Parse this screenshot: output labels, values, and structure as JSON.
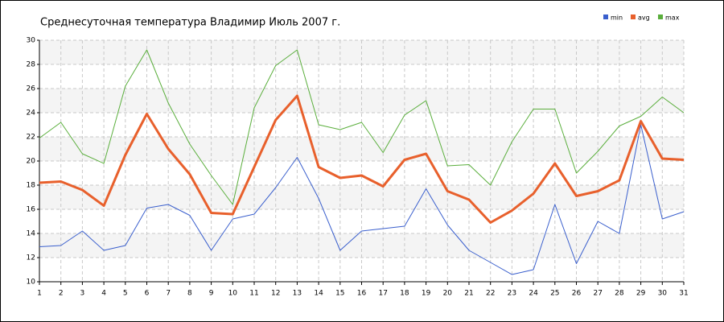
{
  "chart_data": {
    "type": "line",
    "title": "Среднесуточная температура Владимир  Июль 2007 г.",
    "x": [
      1,
      2,
      3,
      4,
      5,
      6,
      7,
      8,
      9,
      10,
      11,
      12,
      13,
      14,
      15,
      16,
      17,
      18,
      19,
      20,
      21,
      22,
      23,
      24,
      25,
      26,
      27,
      28,
      29,
      30,
      31
    ],
    "xlim": [
      1,
      31
    ],
    "xticks": [
      1,
      2,
      3,
      4,
      5,
      6,
      7,
      8,
      9,
      10,
      11,
      12,
      13,
      14,
      15,
      16,
      17,
      18,
      19,
      20,
      21,
      22,
      23,
      24,
      25,
      26,
      27,
      28,
      29,
      30,
      31
    ],
    "ylim": [
      10,
      30
    ],
    "yticks": [
      10,
      12,
      14,
      16,
      18,
      20,
      22,
      24,
      26,
      28,
      30
    ],
    "grid": true,
    "legend": "top-right",
    "series": [
      {
        "name": "min",
        "color": "#3a5fcd",
        "values": [
          12.9,
          13.0,
          14.2,
          12.6,
          13.0,
          16.1,
          16.4,
          15.5,
          12.6,
          15.2,
          15.6,
          17.8,
          20.3,
          16.9,
          12.6,
          14.2,
          14.4,
          14.6,
          17.7,
          14.7,
          12.6,
          11.6,
          10.6,
          11.0,
          16.4,
          11.5,
          15.0,
          14.0,
          23.0,
          15.2,
          15.8
        ]
      },
      {
        "name": "avg",
        "color": "#e8602c",
        "values": [
          18.2,
          18.3,
          17.6,
          16.3,
          20.5,
          23.9,
          21.0,
          18.9,
          15.7,
          15.6,
          19.5,
          23.4,
          25.4,
          19.5,
          18.6,
          18.8,
          17.9,
          20.1,
          20.6,
          17.5,
          16.8,
          14.9,
          15.9,
          17.3,
          19.8,
          17.1,
          17.5,
          18.4,
          23.3,
          20.2,
          20.1
        ]
      },
      {
        "name": "max",
        "color": "#5aae3c",
        "values": [
          21.9,
          23.2,
          20.6,
          19.8,
          26.2,
          29.2,
          24.8,
          21.4,
          18.8,
          16.4,
          24.4,
          27.9,
          29.2,
          23.0,
          22.6,
          23.2,
          20.7,
          23.8,
          25.0,
          19.6,
          19.7,
          18.0,
          21.6,
          24.3,
          24.3,
          19.0,
          20.8,
          22.9,
          23.7,
          25.3,
          24.0
        ]
      }
    ]
  }
}
